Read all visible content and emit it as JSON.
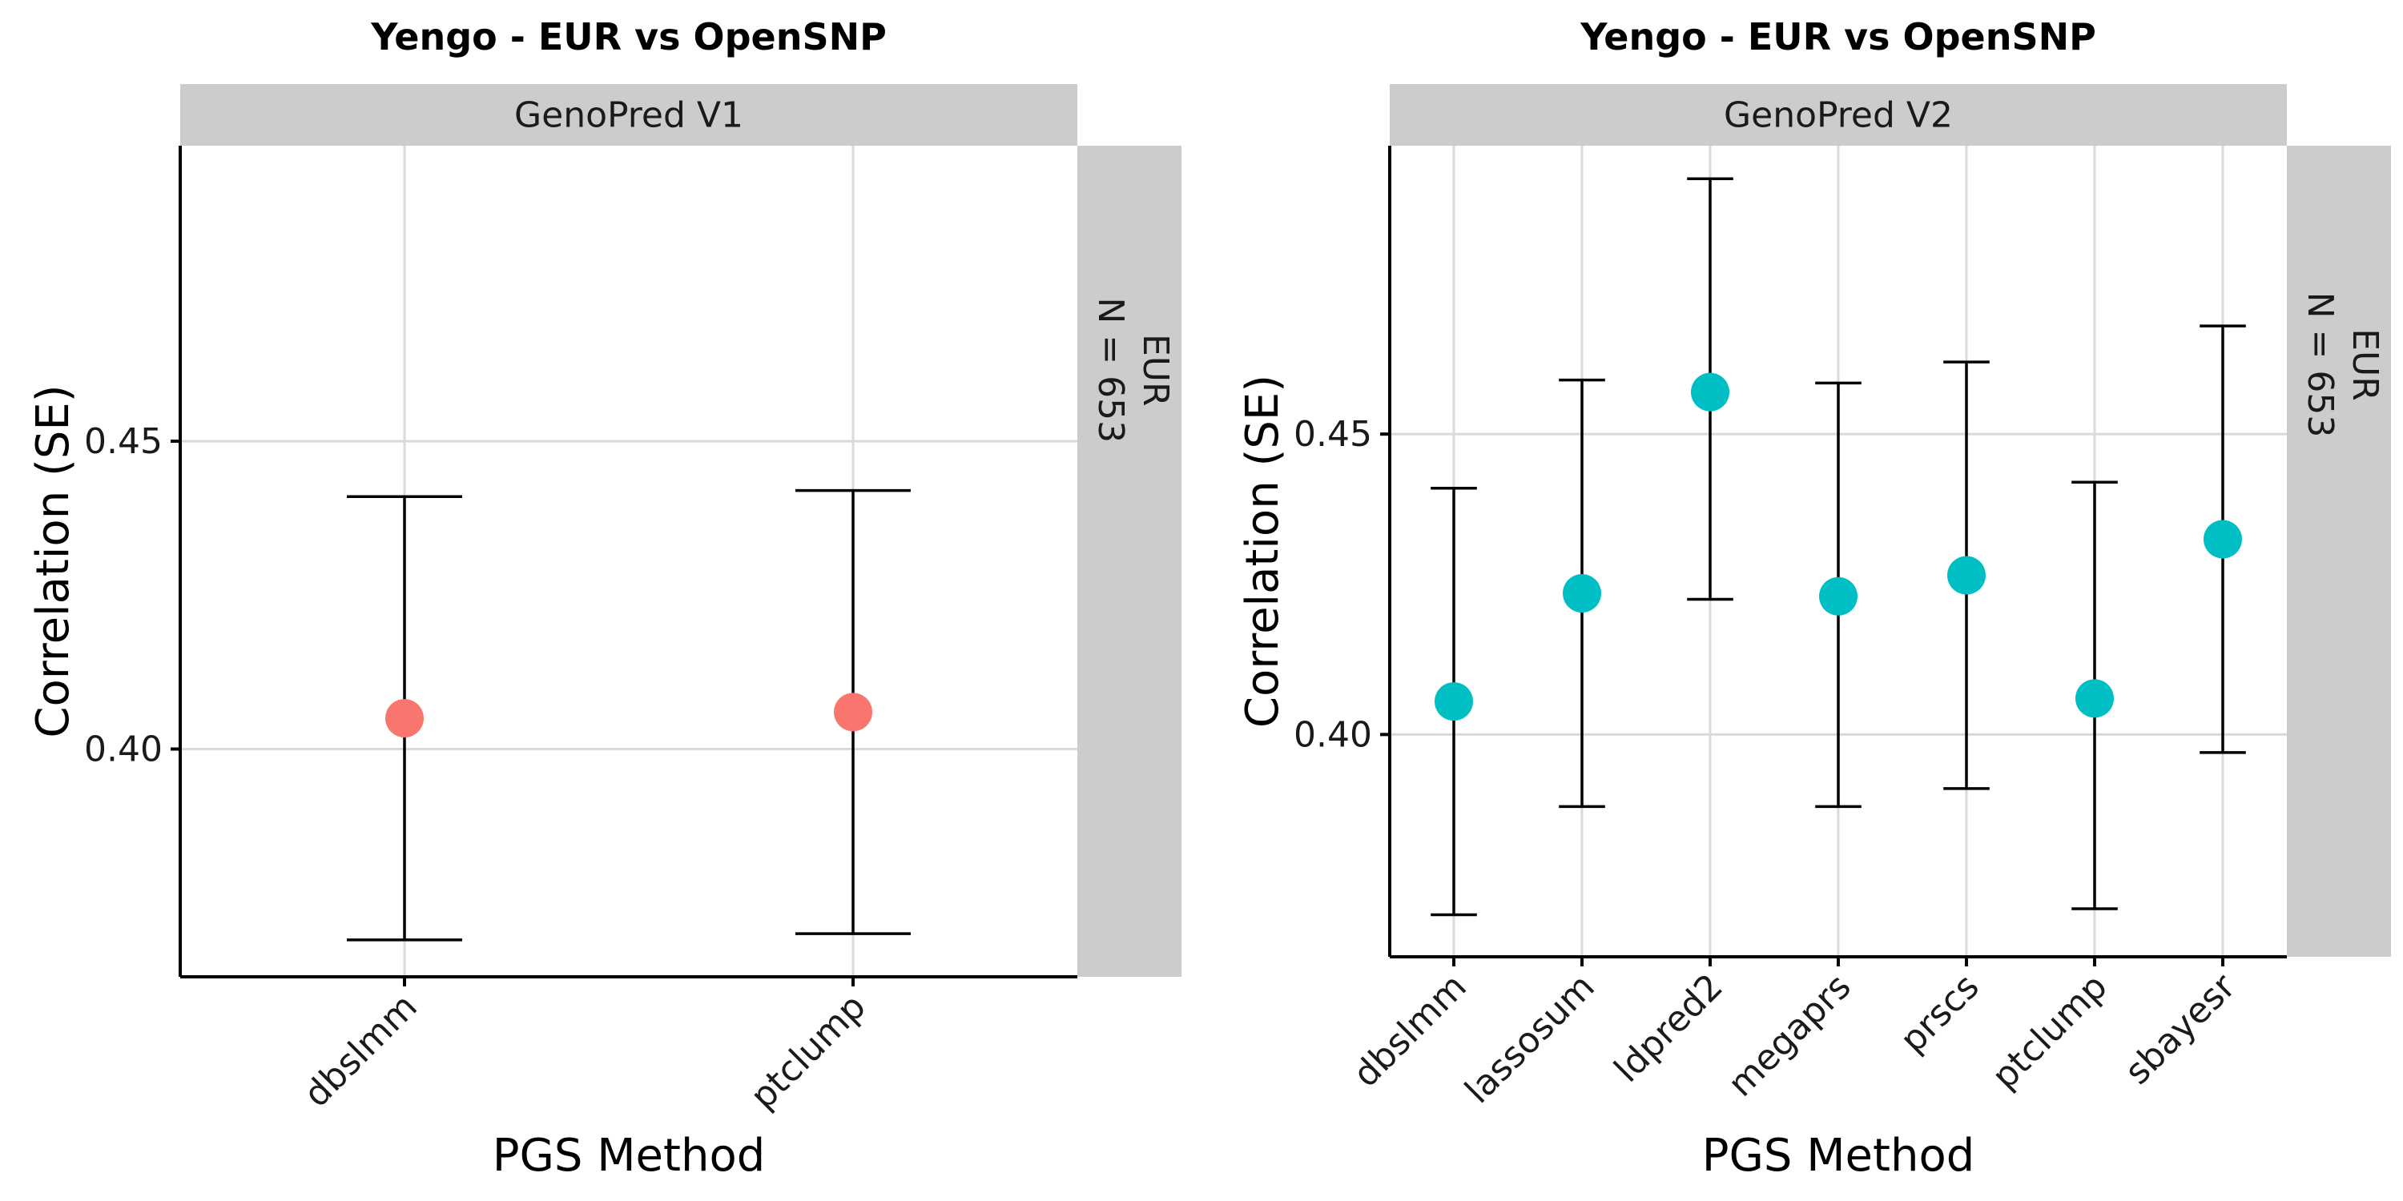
{
  "chart_data": [
    {
      "type": "scatter",
      "title": "Yengo - EUR vs OpenSNP",
      "facet_top": "GenoPred V1",
      "facet_right": [
        "EUR",
        "N = 653"
      ],
      "xlabel": "PGS Method",
      "ylabel": "Correlation (SE)",
      "categories": [
        "dbslmm",
        "ptclump"
      ],
      "values": [
        0.405,
        0.406
      ],
      "lower": [
        0.369,
        0.37
      ],
      "upper": [
        0.441,
        0.442
      ],
      "ylim": [
        0.363,
        0.498
      ],
      "yticks": [
        0.4,
        0.45
      ],
      "ytick_labels": [
        "0.40",
        "0.45"
      ],
      "color": "#F8766D",
      "grid": true
    },
    {
      "type": "scatter",
      "title": "Yengo - EUR vs OpenSNP",
      "facet_top": "GenoPred V2",
      "facet_right": [
        "EUR",
        "N = 653"
      ],
      "xlabel": "PGS Method",
      "ylabel": "Correlation (SE)",
      "categories": [
        "dbslmm",
        "lassosum",
        "ldpred2",
        "megaprs",
        "prscs",
        "ptclump",
        "sbayesr"
      ],
      "values": [
        0.4055,
        0.4235,
        0.457,
        0.423,
        0.4265,
        0.406,
        0.4325
      ],
      "lower": [
        0.37,
        0.388,
        0.4225,
        0.388,
        0.391,
        0.371,
        0.397
      ],
      "upper": [
        0.441,
        0.459,
        0.4925,
        0.4585,
        0.462,
        0.442,
        0.468
      ],
      "ylim": [
        0.363,
        0.498
      ],
      "yticks": [
        0.4,
        0.45
      ],
      "ytick_labels": [
        "0.40",
        "0.45"
      ],
      "color": "#00BFC4",
      "grid": true
    }
  ]
}
